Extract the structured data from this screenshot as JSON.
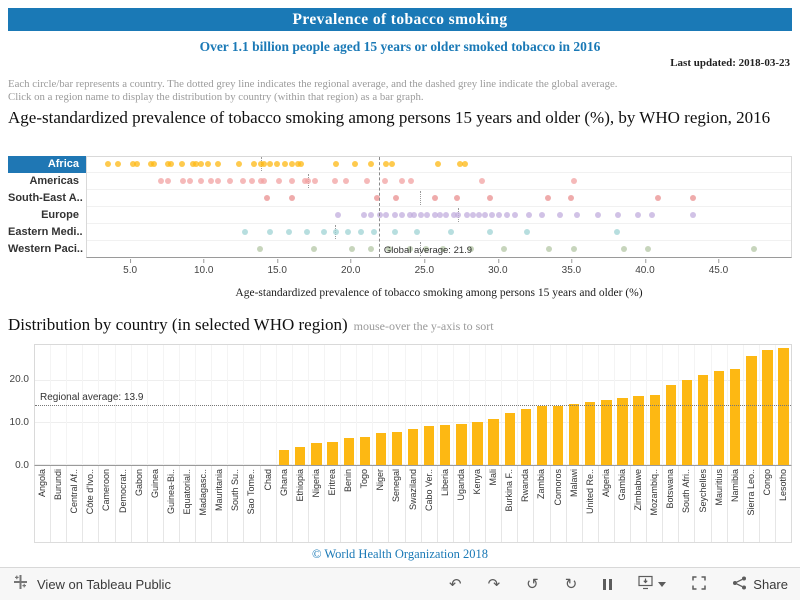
{
  "header": {
    "title": "Prevalence of tobacco smoking",
    "subtitle": "Over 1.1 billion people aged 15 years or older smoked tobacco in 2016",
    "last_updated": "Last updated: 2018-03-23"
  },
  "notes": {
    "line1": "Each circle/bar represents a country. The dotted grey line indicates the regional average, and the dashed grey line indicate the global average.",
    "line2": "Click on a region name to display the distribution by country (within that region) as a bar graph."
  },
  "section2": {
    "hint": "mouse-over the y-axis to sort"
  },
  "footer": "© World Health Organization 2018",
  "toolbar": {
    "view_label": "View on Tableau Public",
    "share_label": "Share",
    "icons": [
      "tableau-logo",
      "undo",
      "redo",
      "revert",
      "refresh",
      "pause",
      "download",
      "fullscreen",
      "share"
    ],
    "glyphs": {
      "undo": "↶",
      "redo": "↷",
      "revert": "↺",
      "refresh": "↻"
    }
  },
  "colors": {
    "banner_blue": "#1a79b6",
    "selected_region_bg": "#1f77b4",
    "bar_gold": "#fdb813",
    "average_line_grey": "#8a8a8a"
  },
  "chart_data": [
    {
      "type": "scatter",
      "title": "Age-standardized prevalence of tobacco smoking among persons 15 years and older (%), by WHO region, 2016",
      "xlabel": "Age-standardized prevalence of tobacco smoking among persons 15 years and older (%)",
      "xlim": [
        2,
        50
      ],
      "xticks": [
        5,
        10,
        15,
        20,
        25,
        30,
        35,
        40,
        45
      ],
      "grid": false,
      "global_average": 21.9,
      "global_average_label": "Global average: 21.9",
      "series": [
        {
          "name": "Africa",
          "selected": true,
          "color": "#fdb813",
          "regional_avg": 13.9,
          "values": [
            3.5,
            4.2,
            5.2,
            5.5,
            6.4,
            6.6,
            7.6,
            7.8,
            8.5,
            9.3,
            9.5,
            9.8,
            10.3,
            11.0,
            12.4,
            13.4,
            13.9,
            14.1,
            14.5,
            15.0,
            15.5,
            16.0,
            16.4,
            16.6,
            19.0,
            20.3,
            21.4,
            22.4,
            22.8,
            25.9,
            27.4,
            27.8
          ]
        },
        {
          "name": "Americas",
          "selected": false,
          "color": "#f2a2a2",
          "regional_avg": 17.1,
          "values": [
            7.1,
            7.6,
            8.6,
            9.1,
            9.8,
            10.5,
            11.0,
            11.8,
            12.7,
            13.3,
            13.9,
            14.1,
            15.1,
            16.0,
            16.9,
            17.1,
            17.6,
            18.9,
            19.7,
            21.1,
            22.3,
            23.5,
            24.1,
            28.9,
            35.2
          ]
        },
        {
          "name": "South-East A..",
          "selected": false,
          "color": "#e98f8f",
          "regional_avg": 24.7,
          "values": [
            14.3,
            16.0,
            21.8,
            23.1,
            25.7,
            27.2,
            29.5,
            33.4,
            35.0,
            40.9,
            43.3
          ]
        },
        {
          "name": "Europe",
          "selected": false,
          "color": "#c2aede",
          "regional_avg": 27.3,
          "values": [
            19.1,
            20.9,
            21.4,
            22.0,
            22.4,
            23.0,
            23.5,
            24.0,
            24.3,
            24.8,
            25.2,
            25.7,
            26.1,
            26.5,
            27.0,
            27.3,
            27.9,
            28.3,
            28.7,
            29.1,
            29.6,
            30.1,
            30.6,
            31.2,
            32.1,
            33.0,
            34.2,
            35.4,
            36.8,
            38.2,
            39.5,
            40.5,
            43.3
          ]
        },
        {
          "name": "Eastern Medi..",
          "selected": false,
          "color": "#9fd3d4",
          "regional_avg": 18.9,
          "values": [
            12.8,
            14.5,
            15.8,
            17.0,
            18.2,
            19.0,
            19.8,
            20.7,
            21.6,
            23.0,
            24.5,
            26.8,
            29.5,
            32.0,
            38.1
          ]
        },
        {
          "name": "Western Paci..",
          "selected": false,
          "color": "#b4c7a6",
          "regional_avg": 24.7,
          "values": [
            13.8,
            17.5,
            20.1,
            21.4,
            22.6,
            24.0,
            25.1,
            26.3,
            28.2,
            30.4,
            33.5,
            35.2,
            38.6,
            40.2,
            47.4
          ]
        }
      ]
    },
    {
      "type": "bar",
      "title": "Distribution by country (in selected WHO region)",
      "bar_color": "#fdb813",
      "yticks": [
        0,
        10,
        20
      ],
      "ylim": [
        0,
        28.5
      ],
      "regional_average": 13.9,
      "regional_average_label": "Regional average: 13.9",
      "categories": [
        "Angola",
        "Burundi",
        "Central Af..",
        "Côte d'Ivo..",
        "Cameroon",
        "Democrat..",
        "Gabon",
        "Guinea",
        "Guinea-Bi..",
        "Equatorial..",
        "Madagasc..",
        "Mauritania",
        "South Su..",
        "Sao Tome..",
        "Chad",
        "Ghana",
        "Ethiopia",
        "Nigeria",
        "Eritrea",
        "Benin",
        "Togo",
        "Niger",
        "Senegal",
        "Swaziland",
        "Cabo Ver..",
        "Liberia",
        "Uganda",
        "Kenya",
        "Mali",
        "Burkina F..",
        "Rwanda",
        "Zambia",
        "Comoros",
        "Malawi",
        "United Re..",
        "Algeria",
        "Gambia",
        "Zimbabwe",
        "Mozambiq..",
        "Botswana",
        "South Afri..",
        "Seychelles",
        "Mauritius",
        "Namibia",
        "Sierra Leo..",
        "Congo",
        "Lesotho"
      ],
      "values": [
        null,
        null,
        null,
        null,
        null,
        null,
        null,
        null,
        null,
        null,
        null,
        null,
        null,
        null,
        null,
        3.5,
        4.2,
        5.2,
        5.5,
        6.4,
        6.6,
        7.6,
        7.8,
        8.5,
        9.3,
        9.5,
        9.8,
        10.3,
        11.0,
        12.4,
        13.4,
        13.9,
        14.1,
        14.5,
        15.0,
        15.5,
        16.0,
        16.4,
        16.6,
        19.0,
        20.3,
        21.4,
        22.4,
        22.8,
        25.9,
        27.4,
        27.8
      ]
    }
  ]
}
